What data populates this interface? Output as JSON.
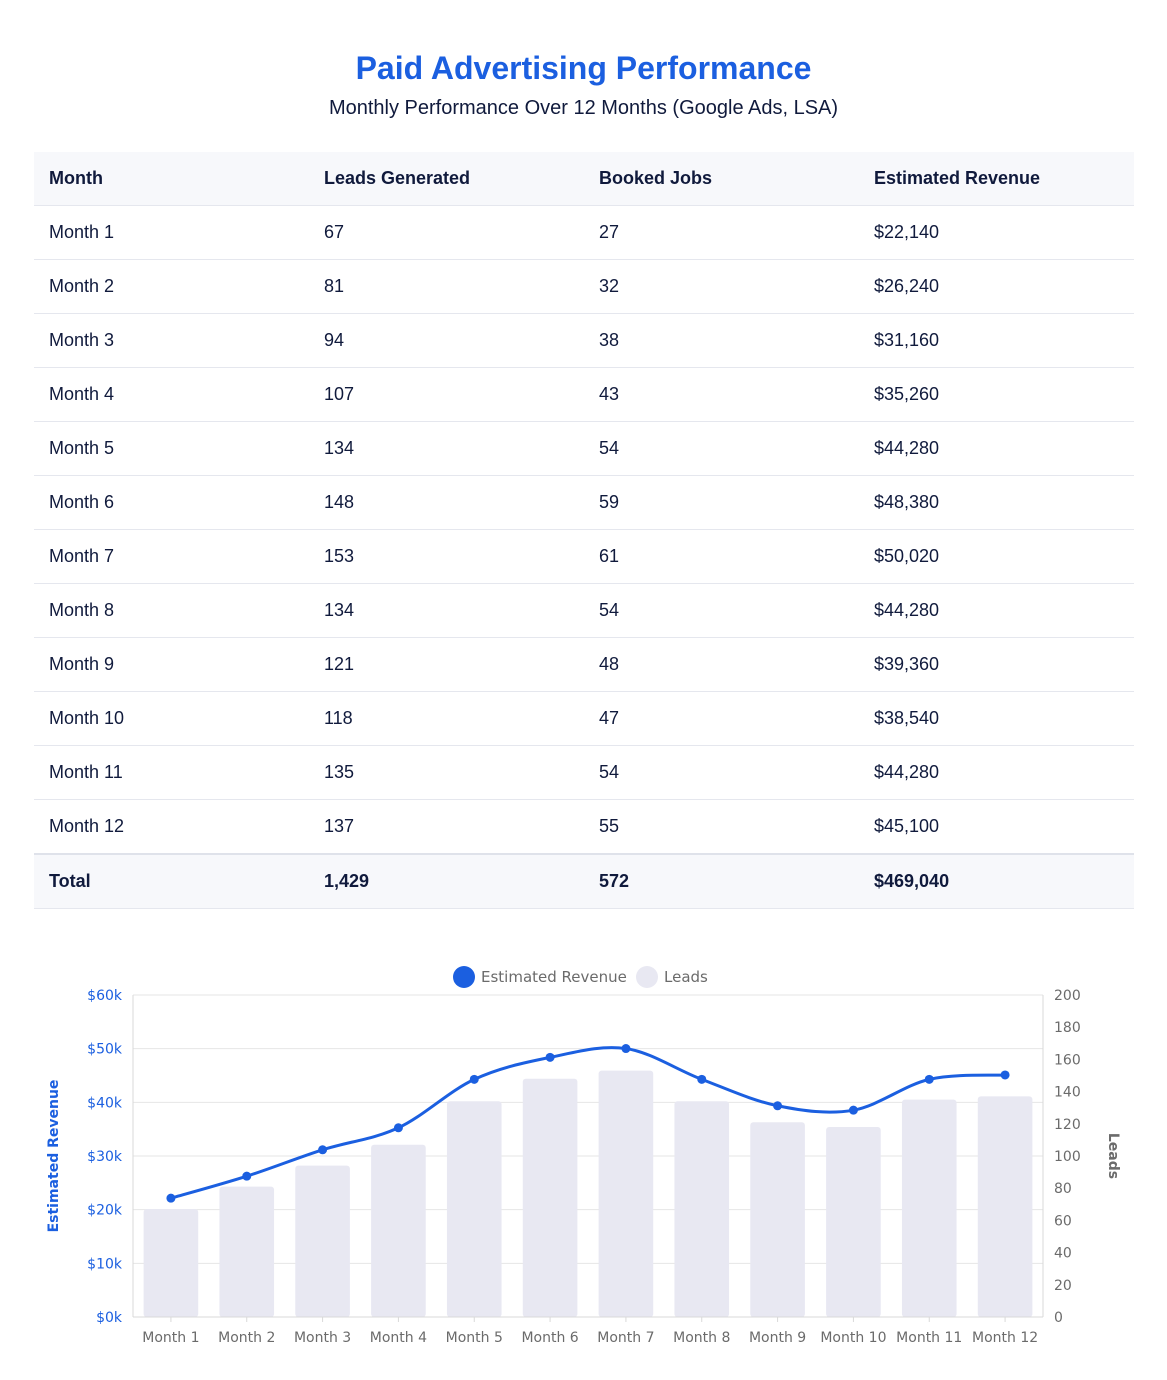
{
  "header": {
    "title": "Paid Advertising Performance",
    "subtitle": "Monthly Performance Over 12 Months (Google Ads, LSA)"
  },
  "table": {
    "columns": [
      "Month",
      "Leads Generated",
      "Booked Jobs",
      "Estimated Revenue"
    ],
    "rows": [
      [
        "Month 1",
        "67",
        "27",
        "$22,140"
      ],
      [
        "Month 2",
        "81",
        "32",
        "$26,240"
      ],
      [
        "Month 3",
        "94",
        "38",
        "$31,160"
      ],
      [
        "Month 4",
        "107",
        "43",
        "$35,260"
      ],
      [
        "Month 5",
        "134",
        "54",
        "$44,280"
      ],
      [
        "Month 6",
        "148",
        "59",
        "$48,380"
      ],
      [
        "Month 7",
        "153",
        "61",
        "$50,020"
      ],
      [
        "Month 8",
        "134",
        "54",
        "$44,280"
      ],
      [
        "Month 9",
        "121",
        "48",
        "$39,360"
      ],
      [
        "Month 10",
        "118",
        "47",
        "$38,540"
      ],
      [
        "Month 11",
        "135",
        "54",
        "$44,280"
      ],
      [
        "Month 12",
        "137",
        "55",
        "$45,100"
      ]
    ],
    "total": [
      "Total",
      "1,429",
      "572",
      "$469,040"
    ]
  },
  "chart_data": {
    "type": "bar",
    "categories": [
      "Month 1",
      "Month 2",
      "Month 3",
      "Month 4",
      "Month 5",
      "Month 6",
      "Month 7",
      "Month 8",
      "Month 9",
      "Month 10",
      "Month 11",
      "Month 12"
    ],
    "series": [
      {
        "name": "Estimated Revenue",
        "type": "line",
        "axis": "left",
        "color": "#1b5fe0",
        "values": [
          22140,
          26240,
          31160,
          35260,
          44280,
          48380,
          50020,
          44280,
          39360,
          38540,
          44280,
          45100
        ]
      },
      {
        "name": "Leads",
        "type": "bar",
        "axis": "right",
        "color": "#e8e8f2",
        "values": [
          67,
          81,
          94,
          107,
          134,
          148,
          153,
          134,
          121,
          118,
          135,
          137
        ]
      }
    ],
    "ylabel": "Estimated Revenue",
    "ylabel_right": "Leads",
    "ylim": [
      0,
      60000
    ],
    "ylim_right": [
      0,
      200
    ],
    "yticks": [
      "$0k",
      "$10k",
      "$20k",
      "$30k",
      "$40k",
      "$50k",
      "$60k"
    ],
    "yticks_right": [
      "0",
      "20",
      "40",
      "60",
      "80",
      "100",
      "120",
      "140",
      "160",
      "180",
      "200"
    ],
    "legend": "top-center",
    "grid": true
  }
}
